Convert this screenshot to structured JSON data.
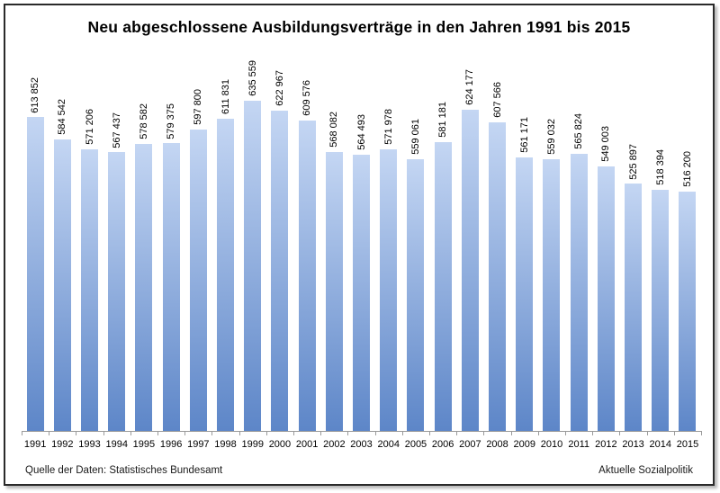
{
  "chart_data": {
    "type": "bar",
    "title": "Neu abgeschlossene Ausbildungsverträge in den Jahren 1991 bis 2015",
    "categories": [
      "1991",
      "1992",
      "1993",
      "1994",
      "1995",
      "1996",
      "1997",
      "1998",
      "1999",
      "2000",
      "2001",
      "2002",
      "2003",
      "2004",
      "2005",
      "2006",
      "2007",
      "2008",
      "2009",
      "2010",
      "2011",
      "2012",
      "2013",
      "2014",
      "2015"
    ],
    "values": [
      613852,
      584542,
      571206,
      567437,
      578582,
      579375,
      597800,
      611831,
      635559,
      622967,
      609576,
      568082,
      564493,
      571978,
      559061,
      581181,
      624177,
      607566,
      561171,
      559032,
      565824,
      549003,
      525897,
      518394,
      516200
    ],
    "value_labels": [
      "613 852",
      "584 542",
      "571 206",
      "567 437",
      "578 582",
      "579 375",
      "597 800",
      "611 831",
      "635 559",
      "622 967",
      "609 576",
      "568 082",
      "564 493",
      "571 978",
      "559 061",
      "581 181",
      "624 177",
      "607 566",
      "561 171",
      "559 032",
      "565 824",
      "549 003",
      "525 897",
      "518 394",
      "516 200"
    ],
    "xlabel": "",
    "ylabel": "",
    "ylim": [
      200000,
      640000
    ],
    "grid": false,
    "legend": "none",
    "value_label_rotation_deg": 90,
    "colors": {
      "bar_gradient_top": "#c4d6f3",
      "bar_gradient_bottom": "#5d86c8",
      "axis": "#9a9a9a",
      "text": "#000000"
    },
    "source_left": "Quelle der Daten: Statistisches Bundesamt",
    "source_right": "Aktuelle Sozialpolitik"
  }
}
